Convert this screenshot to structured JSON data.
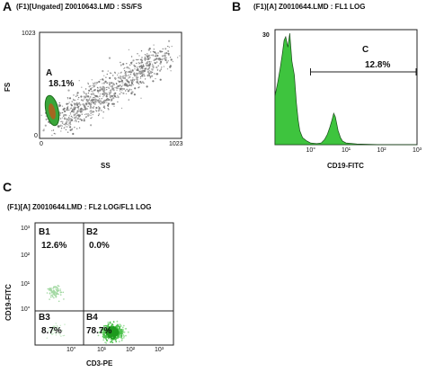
{
  "panels": [
    {
      "letter": "A",
      "title": "(F1)[Ungated] Z0010643.LMD : SS/FS",
      "xlabel": "SS",
      "ylabel": "FS",
      "x_ticks": [
        "0",
        "1023"
      ],
      "y_ticks": [
        "1023",
        "0"
      ],
      "gate": {
        "name": "A",
        "percent": "18.1%"
      }
    },
    {
      "letter": "B",
      "title": "(F1)[A] Z0010644.LMD : FL1 LOG",
      "xlabel": "CD19-FITC",
      "ymax_label": "30",
      "x_ticks": [
        "10°",
        "10¹",
        "10²",
        "10³"
      ],
      "gate": {
        "name": "C",
        "percent": "12.8%"
      }
    },
    {
      "letter": "C",
      "title": "(F1)[A] Z0010644.LMD : FL2 LOG/FL1 LOG",
      "xlabel": "CD3-PE",
      "ylabel": "CD19-FITC",
      "y_ticks": [
        "10³",
        "10²",
        "10¹",
        "10°"
      ],
      "x_ticks": [
        "10°",
        "10¹",
        "10²",
        "10³"
      ],
      "quadrants": [
        {
          "name": "B1",
          "percent": "12.6%"
        },
        {
          "name": "B2",
          "percent": "0.0%"
        },
        {
          "name": "B3",
          "percent": "8.7%"
        },
        {
          "name": "B4",
          "percent": "78.7%"
        }
      ]
    }
  ],
  "chart_data": [
    {
      "type": "scatter",
      "title": "(F1)[Ungated] Z0010643.LMD : SS/FS",
      "xlabel": "SS",
      "ylabel": "FS",
      "xlim": [
        0,
        1023
      ],
      "ylim": [
        0,
        1023
      ],
      "gates": [
        {
          "name": "A",
          "percent": 18.1
        }
      ],
      "colors": {
        "points": "#8a8a8a",
        "gate": "#2e8b2e",
        "gate_core": "#c85a1a"
      }
    },
    {
      "type": "area",
      "title": "(F1)[A] Z0010644.LMD : FL1 LOG",
      "xlabel": "CD19-FITC",
      "x_scale": "log",
      "xlim": [
        0.1,
        1000
      ],
      "ylim": [
        0,
        32
      ],
      "histogram": {
        "x": [
          0.1,
          0.12,
          0.14,
          0.16,
          0.18,
          0.2,
          0.23,
          0.26,
          0.3,
          0.35,
          0.4,
          0.45,
          0.5,
          0.6,
          0.8,
          1.0,
          1.5,
          2,
          2.5,
          3,
          3.5,
          4,
          4.5,
          5,
          5.5,
          6,
          6.5,
          7,
          8,
          10,
          20,
          100,
          1000
        ],
        "y": [
          14,
          18,
          22,
          26,
          30,
          31,
          28,
          32,
          24,
          20,
          12,
          7,
          4,
          2,
          1,
          0.5,
          0.3,
          0.5,
          1.5,
          3,
          5,
          7,
          9,
          8,
          6,
          4,
          3,
          2,
          1,
          0.5,
          0.2,
          0,
          0
        ]
      },
      "gates": [
        {
          "name": "C",
          "range": [
            1,
            1000
          ],
          "percent": 12.8
        }
      ],
      "colors": {
        "fill": "#3ec43e"
      }
    },
    {
      "type": "scatter",
      "title": "(F1)[A] Z0010644.LMD : FL2 LOG/FL1 LOG",
      "xlabel": "CD3-PE",
      "ylabel": "CD19-FITC",
      "x_scale": "log",
      "y_scale": "log",
      "xlim": [
        0.1,
        1000
      ],
      "ylim": [
        0.1,
        1000
      ],
      "quadrants": [
        {
          "name": "B1",
          "percent": 12.6
        },
        {
          "name": "B2",
          "percent": 0.0
        },
        {
          "name": "B3",
          "percent": 8.7
        },
        {
          "name": "B4",
          "percent": 78.7
        }
      ],
      "colors": {
        "points": "#6fcf6f",
        "dense": "#2ea82e"
      }
    }
  ]
}
